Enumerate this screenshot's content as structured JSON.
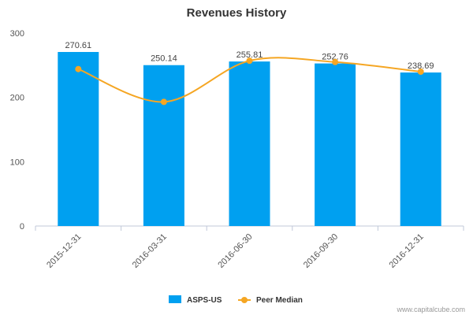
{
  "chart_data": {
    "type": "bar",
    "title": "Revenues History",
    "categories": [
      "2015-12-31",
      "2016-03-31",
      "2016-06-30",
      "2016-09-30",
      "2016-12-31"
    ],
    "series": [
      {
        "name": "ASPS-US",
        "type": "bar",
        "color": "#00a0f0",
        "values": [
          270.61,
          250.14,
          255.81,
          252.76,
          238.69
        ]
      },
      {
        "name": "Peer Median",
        "type": "line",
        "color": "#f5a623",
        "values": [
          244,
          193,
          257,
          255,
          240
        ]
      }
    ],
    "ylim": [
      0,
      300
    ],
    "yticks": [
      0,
      100,
      200,
      300
    ],
    "xlabel": "",
    "ylabel": "",
    "grid": false,
    "legend": "bottom-center"
  },
  "credit": "www.capitalcube.com"
}
